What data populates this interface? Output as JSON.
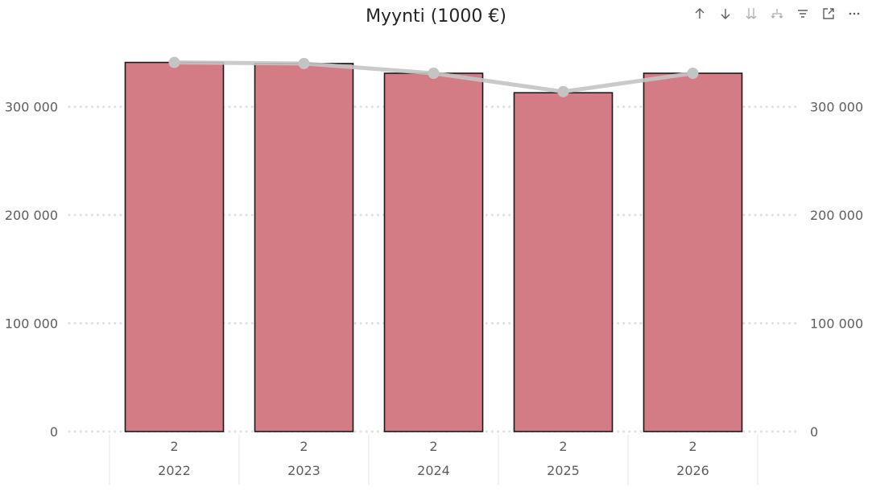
{
  "chart_data": {
    "type": "bar",
    "title": "Myynti (1000 €)",
    "categories": [
      "2022",
      "2023",
      "2024",
      "2025",
      "2026"
    ],
    "sub_labels": [
      "2",
      "2",
      "2",
      "2",
      "2"
    ],
    "series": [
      {
        "kind": "bar",
        "values": [
          341000,
          340000,
          331000,
          313000,
          331000
        ]
      },
      {
        "kind": "line",
        "values": [
          341000,
          340000,
          331000,
          314000,
          331000
        ]
      }
    ],
    "ylim": [
      0,
      360000
    ],
    "yticks": [
      0,
      100000,
      200000,
      300000
    ],
    "ytick_labels": [
      "0",
      "100 000",
      "200 000",
      "300 000"
    ],
    "secondary_axis": true,
    "grid": "dotted",
    "colors": {
      "bar": "#d47c86",
      "bar_border": "#1a1a1a",
      "line": "#c4c4c4",
      "grid": "#e0e0e0"
    }
  },
  "toolbar": {
    "buttons": [
      {
        "name": "sort-ascending-icon"
      },
      {
        "name": "sort-descending-icon"
      },
      {
        "name": "expand-all-down-icon"
      },
      {
        "name": "drill-hierarchy-icon"
      },
      {
        "name": "filter-icon"
      },
      {
        "name": "focus-mode-icon"
      },
      {
        "name": "more-options-icon"
      }
    ]
  }
}
